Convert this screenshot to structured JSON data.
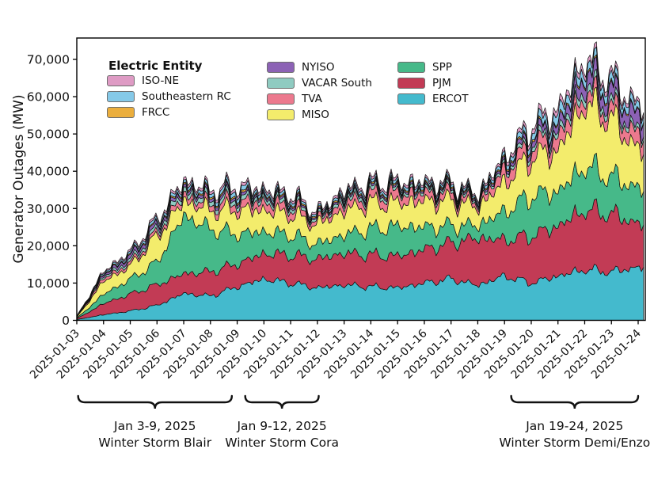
{
  "page": {
    "background": "#ffffff"
  },
  "chart_data": {
    "type": "area",
    "stacked": true,
    "title": "",
    "xlabel": "",
    "ylabel": "Generator Outages (MW)",
    "ylim": [
      0,
      72000
    ],
    "yticks": [
      0,
      10000,
      20000,
      30000,
      40000,
      50000,
      60000,
      70000
    ],
    "grid": false,
    "dates": [
      "2025-01-03",
      "2025-01-04",
      "2025-01-05",
      "2025-01-06",
      "2025-01-07",
      "2025-01-08",
      "2025-01-09",
      "2025-01-10",
      "2025-01-11",
      "2025-01-12",
      "2025-01-13",
      "2025-01-14",
      "2025-01-15",
      "2025-01-16",
      "2025-01-17",
      "2025-01-18",
      "2025-01-19",
      "2025-01-20",
      "2025-01-21",
      "2025-01-22",
      "2025-01-23",
      "2025-01-24"
    ],
    "unit": "MW",
    "stack_order_note": "series listed bottom of stack to top",
    "series": [
      {
        "name": "ERCOT",
        "color": "#44BACD",
        "values": [
          200,
          1500,
          2500,
          4000,
          7200,
          6500,
          9000,
          11100,
          10000,
          8700,
          9500,
          9000,
          8700,
          10000,
          11100,
          9400,
          11900,
          10000,
          11900,
          13600,
          13000,
          14300
        ]
      },
      {
        "name": "PJM",
        "color": "#C23B55",
        "values": [
          200,
          3000,
          4500,
          5500,
          5300,
          6500,
          6100,
          6800,
          7500,
          7700,
          8500,
          8500,
          8500,
          9000,
          9600,
          12700,
          9600,
          12600,
          13400,
          16000,
          15500,
          11700
        ]
      },
      {
        "name": "SPP",
        "color": "#46B989",
        "values": [
          100,
          2500,
          4000,
          6000,
          15600,
          11500,
          8000,
          5900,
          5500,
          4000,
          5000,
          7000,
          8000,
          6000,
          4600,
          3400,
          7600,
          10800,
          9200,
          11700,
          10000,
          9500
        ]
      },
      {
        "name": "MISO",
        "color": "#F3EC6C",
        "values": [
          200,
          3500,
          3500,
          7000,
          4000,
          5000,
          6500,
          5800,
          5500,
          5300,
          6500,
          7000,
          6400,
          7000,
          6800,
          4900,
          7900,
          10400,
          11000,
          17000,
          15500,
          10400
        ]
      },
      {
        "name": "TVA",
        "color": "#EC798E",
        "values": [
          100,
          800,
          800,
          1000,
          1500,
          1500,
          2000,
          2100,
          2000,
          1000,
          2000,
          2000,
          2500,
          2000,
          1800,
          1000,
          3200,
          2800,
          3600,
          2800,
          2800,
          3900
        ]
      },
      {
        "name": "VACAR South",
        "color": "#8FCBC1",
        "values": [
          50,
          500,
          800,
          1000,
          1200,
          1200,
          1200,
          1000,
          1000,
          600,
          1000,
          1000,
          800,
          800,
          800,
          600,
          800,
          1200,
          1300,
          1900,
          1500,
          1100
        ]
      },
      {
        "name": "NYISO",
        "color": "#8C62B5",
        "values": [
          50,
          500,
          1000,
          1000,
          800,
          800,
          800,
          600,
          600,
          400,
          600,
          600,
          500,
          500,
          500,
          500,
          700,
          1500,
          1900,
          3400,
          3000,
          3800
        ]
      },
      {
        "name": "FRCC",
        "color": "#EBAE3D",
        "values": [
          20,
          200,
          300,
          300,
          400,
          400,
          500,
          400,
          400,
          300,
          400,
          400,
          400,
          400,
          400,
          300,
          400,
          500,
          400,
          500,
          500,
          300
        ]
      },
      {
        "name": "Southeastern RC",
        "color": "#85C9E8",
        "values": [
          50,
          400,
          600,
          800,
          800,
          900,
          1200,
          800,
          800,
          500,
          800,
          800,
          800,
          800,
          700,
          600,
          1000,
          1600,
          2400,
          2100,
          2000,
          1800
        ]
      },
      {
        "name": "ISO-NE",
        "color": "#DE9BC4",
        "values": [
          20,
          300,
          500,
          600,
          700,
          700,
          800,
          700,
          700,
          500,
          700,
          700,
          700,
          600,
          600,
          500,
          800,
          1200,
          1400,
          1400,
          1200,
          900
        ]
      }
    ],
    "legend": {
      "title": "Electric Entity",
      "position": "upper-left",
      "columns": [
        [
          "ISO-NE",
          "Southeastern RC",
          "FRCC"
        ],
        [
          "NYISO",
          "VACAR South",
          "TVA",
          "MISO"
        ],
        [
          "SPP",
          "PJM",
          "ERCOT"
        ]
      ]
    },
    "annotations": [
      {
        "line1": "Jan 3-9, 2025",
        "line2": "Winter Storm Blair",
        "day_start": 0.05,
        "day_end": 5.8
      },
      {
        "line1": "Jan 9-12, 2025",
        "line2": "Winter Storm Cora",
        "day_start": 6.3,
        "day_end": 9.05
      },
      {
        "line1": "Jan 19-24, 2025",
        "line2": "Winter Storm Demi/Enzo",
        "day_start": 16.25,
        "day_end": 21.0
      }
    ]
  }
}
